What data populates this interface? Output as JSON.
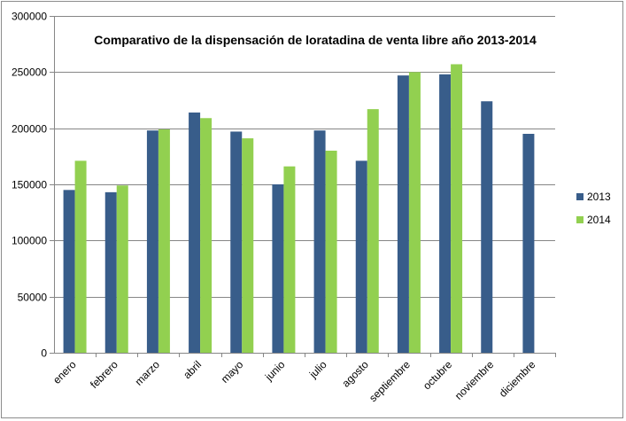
{
  "chart_data": {
    "type": "bar",
    "title": "Comparativo de la dispensación de loratadina de venta libre  año 2013-2014",
    "xlabel": "",
    "ylabel": "",
    "ylim": [
      0,
      300000
    ],
    "yticks": [
      0,
      50000,
      100000,
      150000,
      200000,
      250000,
      300000
    ],
    "ytick_labels": [
      "0",
      "50000",
      "100000",
      "150000",
      "200000",
      "250000",
      "300000"
    ],
    "grid": true,
    "legend_position": "right",
    "categories": [
      "enero",
      "febrero",
      "marzo",
      "abril",
      "mayo",
      "junio",
      "julio",
      "agosto",
      "septiembre",
      "octubre",
      "noviembre",
      "diciembre"
    ],
    "series": [
      {
        "name": "2013",
        "color": "#385D8A",
        "values": [
          145000,
          143000,
          198000,
          214000,
          197000,
          150000,
          198000,
          171000,
          247000,
          248000,
          224000,
          195000
        ]
      },
      {
        "name": "2014",
        "color": "#92D050",
        "values": [
          171000,
          149000,
          199000,
          209000,
          191000,
          166000,
          180000,
          217000,
          250000,
          257000,
          null,
          null
        ]
      }
    ]
  }
}
